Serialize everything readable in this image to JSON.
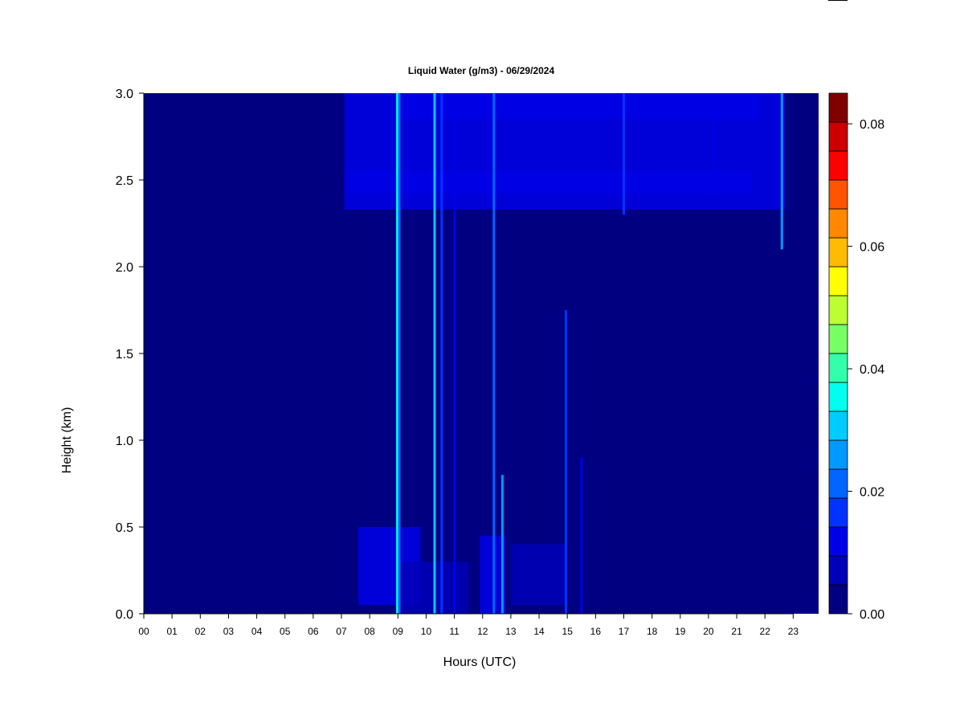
{
  "chart_data": {
    "type": "heatmap",
    "title": "Liquid Water (g/m3) - 06/29/2024",
    "xlabel": "Hours (UTC)",
    "ylabel": "Height (km)",
    "xlim": [
      0,
      23.9
    ],
    "ylim": [
      0,
      3.0
    ],
    "x_tick_values": [
      0,
      1,
      2,
      3,
      4,
      5,
      6,
      7,
      8,
      9,
      10,
      11,
      12,
      13,
      14,
      15,
      16,
      17,
      18,
      19,
      20,
      21,
      22,
      23
    ],
    "x_tick_labels": [
      "00",
      "01",
      "02",
      "03",
      "04",
      "05",
      "06",
      "07",
      "08",
      "09",
      "10",
      "11",
      "12",
      "13",
      "14",
      "15",
      "16",
      "17",
      "18",
      "19",
      "20",
      "21",
      "22",
      "23"
    ],
    "y_tick_values": [
      0,
      0.5,
      1.0,
      1.5,
      2.0,
      2.5,
      3.0
    ],
    "y_tick_labels": [
      "0.0",
      "0.5",
      "1.0",
      "1.5",
      "2.0",
      "2.5",
      "3.0"
    ],
    "colorbar": {
      "min": 0.0,
      "max": 0.085,
      "tick_values": [
        0.0,
        0.02,
        0.04,
        0.06,
        0.08
      ],
      "tick_labels": [
        "0.00",
        "0.02",
        "0.04",
        "0.06",
        "0.08"
      ],
      "colors": [
        "#000080",
        "#0000B8",
        "#0000E8",
        "#0033FF",
        "#0066FF",
        "#0099FF",
        "#00CCFF",
        "#00FFEE",
        "#33FFAA",
        "#77FF66",
        "#BBFF33",
        "#FFFF00",
        "#FFBB00",
        "#FF8800",
        "#FF5500",
        "#FF0000",
        "#CC0000",
        "#800000"
      ]
    },
    "background_value": 0.0,
    "cloud_layers": [
      {
        "x": [
          7.1,
          22.7
        ],
        "y": [
          2.33,
          3.0
        ],
        "value": 0.01
      },
      {
        "x": [
          7.3,
          21.5
        ],
        "y": [
          2.42,
          2.55
        ],
        "value": 0.012
      },
      {
        "x": [
          9.0,
          21.8
        ],
        "y": [
          2.85,
          3.0
        ],
        "value": 0.013
      },
      {
        "x": [
          7.6,
          9.8
        ],
        "y": [
          0.05,
          0.5
        ],
        "value": 0.011
      },
      {
        "x": [
          11.9,
          12.8
        ],
        "y": [
          0.0,
          0.45
        ],
        "value": 0.014
      },
      {
        "x": [
          9.0,
          11.5
        ],
        "y": [
          0.0,
          0.3
        ],
        "value": 0.008
      },
      {
        "x": [
          13.0,
          15.0
        ],
        "y": [
          0.05,
          0.4
        ],
        "value": 0.006
      }
    ],
    "vertical_streaks": [
      {
        "x": 8.98,
        "y": [
          0.0,
          3.0
        ],
        "value": 0.035
      },
      {
        "x": 9.05,
        "y": [
          0.0,
          3.0
        ],
        "value": 0.022
      },
      {
        "x": 10.3,
        "y": [
          0.0,
          3.0
        ],
        "value": 0.03
      },
      {
        "x": 10.55,
        "y": [
          0.0,
          3.0
        ],
        "value": 0.016
      },
      {
        "x": 11.0,
        "y": [
          0.0,
          3.0
        ],
        "value": 0.012
      },
      {
        "x": 12.4,
        "y": [
          0.0,
          3.0
        ],
        "value": 0.022
      },
      {
        "x": 12.7,
        "y": [
          0.0,
          0.8
        ],
        "value": 0.028
      },
      {
        "x": 14.95,
        "y": [
          0.0,
          1.75
        ],
        "value": 0.018
      },
      {
        "x": 15.5,
        "y": [
          0.0,
          0.9
        ],
        "value": 0.01
      },
      {
        "x": 22.6,
        "y": [
          2.1,
          3.0
        ],
        "value": 0.028
      },
      {
        "x": 17.0,
        "y": [
          2.3,
          3.0
        ],
        "value": 0.016
      },
      {
        "x": 20.2,
        "y": [
          2.4,
          3.0
        ],
        "value": 0.012
      }
    ]
  }
}
